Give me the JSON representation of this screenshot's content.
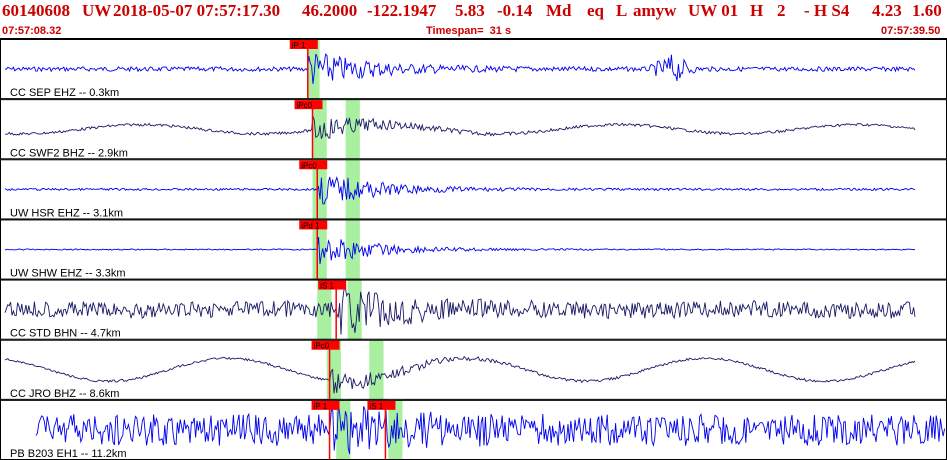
{
  "header": {
    "event_id": "60140608",
    "network": "UW",
    "origin_datetime": "2018-05-07 07:57:17.30",
    "lat": "46.2000",
    "lon": "-122.1947",
    "depth": "5.83",
    "magnitude": "-0.14",
    "mag_type": "Md",
    "event_type": "eq",
    "flag": "L",
    "analyst": "amyw",
    "phase_group": "UW 01",
    "quality": "H",
    "count": "2",
    "extra": "- H S4",
    "rms": "4.23",
    "err": "1.60"
  },
  "timebar": {
    "start_time": "07:57:08.32",
    "timespan": "Timespan=  31 s",
    "end_time": "07:57:39.50"
  },
  "colors": {
    "header_text": "#cc0000",
    "trace_primary": "#0000ee",
    "trace_secondary": "#1a1a66",
    "pick_window": "#a8f0a0",
    "pick_marker": "#ff0000",
    "panel_border": "#000000"
  },
  "panels": [
    {
      "label": "CC SEP EHZ -- 0.3km",
      "picks": [
        {
          "label": "iP 1",
          "t": 0.325
        }
      ],
      "windows": [
        {
          "t": 0.325,
          "w": 0.0125
        }
      ],
      "trace_color": "primary",
      "amp": 0.25,
      "low": 0.0,
      "noise": 0.15,
      "burst": 0.55,
      "extra_burst_t": 0.71
    },
    {
      "label": "CC SWF2 BHZ -- 2.9km",
      "picks": [
        {
          "label": "iPc0",
          "t": 0.33
        }
      ],
      "windows": [
        {
          "t": 0.33,
          "w": 0.015
        },
        {
          "t": 0.365,
          "w": 0.015
        }
      ],
      "trace_color": "secondary",
      "amp": 0.22,
      "low": 0.35,
      "noise": 0.1,
      "burst": 0.45
    },
    {
      "label": "UW HSR EHZ -- 3.1km",
      "picks": [
        {
          "label": "iPc0",
          "t": 0.335
        }
      ],
      "windows": [
        {
          "t": 0.33,
          "w": 0.015
        },
        {
          "t": 0.365,
          "w": 0.015
        }
      ],
      "trace_color": "primary",
      "amp": 0.22,
      "low": 0.0,
      "noise": 0.08,
      "burst": 0.6
    },
    {
      "label": "UW SHW EHZ -- 3.3km",
      "picks": [
        {
          "label": "iPd 1",
          "t": 0.335
        }
      ],
      "windows": [
        {
          "t": 0.33,
          "w": 0.015
        },
        {
          "t": 0.365,
          "w": 0.015
        }
      ],
      "trace_color": "primary",
      "amp": 0.2,
      "low": 0.0,
      "noise": 0.05,
      "burst": 0.6
    },
    {
      "label": "CC STD BHN -- 4.7km",
      "picks": [
        {
          "label": "iS 1",
          "t": 0.355
        }
      ],
      "windows": [
        {
          "t": 0.335,
          "w": 0.015
        },
        {
          "t": 0.367,
          "w": 0.015
        }
      ],
      "trace_color": "secondary",
      "amp": 0.3,
      "low": 0.05,
      "noise": 0.45,
      "burst": 0.5
    },
    {
      "label": "CC JRO BHZ -- 8.6km",
      "picks": [
        {
          "label": "iPc0",
          "t": 0.348
        }
      ],
      "windows": [
        {
          "t": 0.345,
          "w": 0.015
        },
        {
          "t": 0.39,
          "w": 0.015
        }
      ],
      "trace_color": "secondary",
      "amp": 0.32,
      "low": 0.6,
      "noise": 0.06,
      "burst": 0.3
    },
    {
      "label": "PB B203 EH1 -- 11.2km",
      "picks": [
        {
          "label": "iP 1",
          "t": 0.348
        },
        {
          "label": "iS 1",
          "t": 0.407
        }
      ],
      "windows": [
        {
          "t": 0.355,
          "w": 0.015
        },
        {
          "t": 0.41,
          "w": 0.015
        }
      ],
      "trace_color": "primary",
      "amp": 0.35,
      "low": 0.0,
      "noise": 0.75,
      "burst": 0.3
    }
  ]
}
